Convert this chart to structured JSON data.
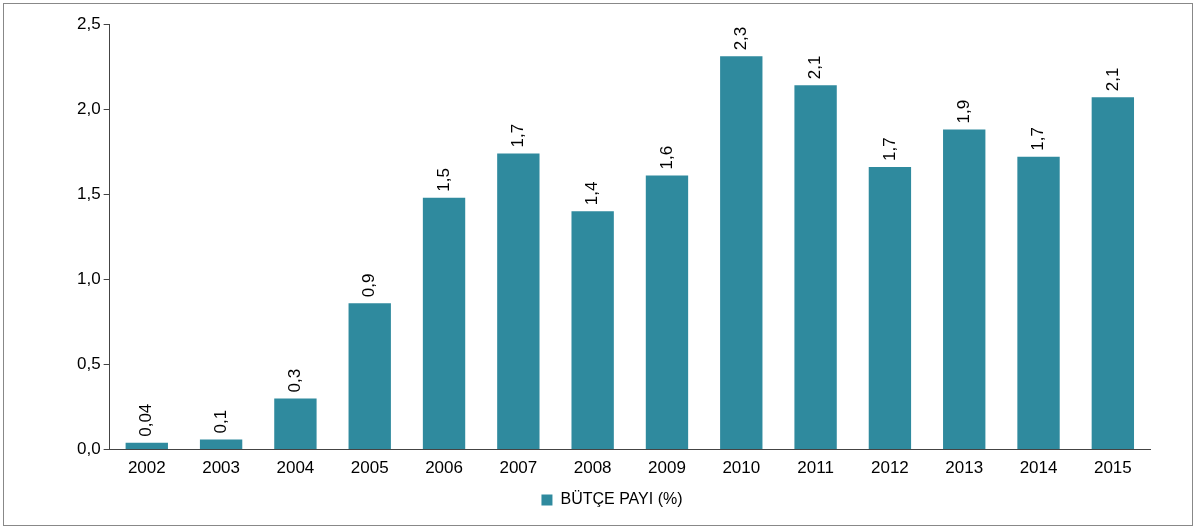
{
  "chart_data": {
    "type": "bar",
    "categories": [
      "2002",
      "2003",
      "2004",
      "2005",
      "2006",
      "2007",
      "2008",
      "2009",
      "2010",
      "2011",
      "2012",
      "2013",
      "2014",
      "2015"
    ],
    "series": [
      {
        "name": "BÜTÇE PAYI (%)",
        "color": "#2f8a9e",
        "values": [
          0.04,
          0.06,
          0.3,
          0.86,
          1.48,
          1.74,
          1.4,
          1.61,
          2.31,
          2.14,
          1.66,
          1.88,
          1.72,
          2.07
        ],
        "value_labels": [
          "0,04",
          "0,1",
          "0,3",
          "0,9",
          "1,5",
          "1,7",
          "1,4",
          "1,6",
          "2,3",
          "2,1",
          "1,7",
          "1,9",
          "1,7",
          "2,1"
        ]
      }
    ],
    "ylim": [
      0,
      2.5
    ],
    "yticks": [
      {
        "value": 0,
        "label": "0,0"
      },
      {
        "value": 0.5,
        "label": "0,5"
      },
      {
        "value": 1,
        "label": "1,0"
      },
      {
        "value": 1.5,
        "label": "1,5"
      },
      {
        "value": 2,
        "label": "2,0"
      },
      {
        "value": 2.5,
        "label": "2,5"
      }
    ],
    "grid": false,
    "legend": "bottom"
  }
}
